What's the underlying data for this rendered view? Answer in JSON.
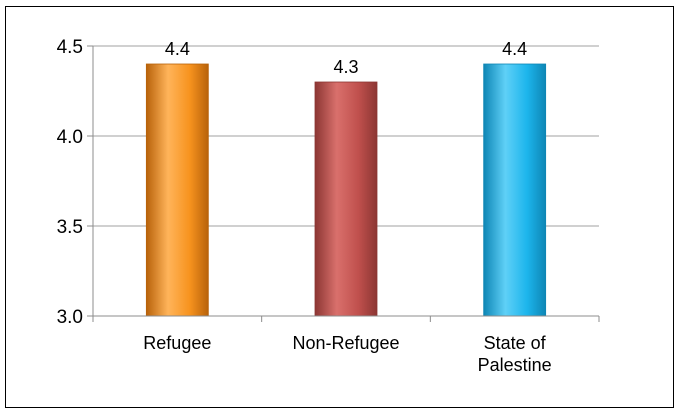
{
  "chart_data": {
    "type": "bar",
    "categories": [
      "Refugee",
      "Non-Refugee",
      "State of Palestine"
    ],
    "category_lines": [
      [
        "Refugee"
      ],
      [
        "Non-Refugee"
      ],
      [
        "State of",
        "Palestine"
      ]
    ],
    "values": [
      4.4,
      4.3,
      4.4
    ],
    "data_labels": [
      "4.4",
      "4.3",
      "4.4"
    ],
    "y_ticks": [
      3.0,
      3.5,
      4.0,
      4.5
    ],
    "y_tick_labels": [
      "3.0",
      "3.5",
      "4.0",
      "4.5"
    ],
    "ylim": [
      3.0,
      4.5
    ],
    "grid": true,
    "legend": "none",
    "title": "",
    "xlabel": "",
    "ylabel": "",
    "colors": {
      "bars": [
        "#F7931E",
        "#C0504D",
        "#1CB5EC"
      ],
      "bars_dark": [
        "#B8620A",
        "#8C3633",
        "#0E86B5"
      ],
      "bars_light": [
        "#FFB45A",
        "#D9706C",
        "#5FD0F7"
      ],
      "grid": "#A0A0A0",
      "axis": "#8C8C8C"
    }
  }
}
